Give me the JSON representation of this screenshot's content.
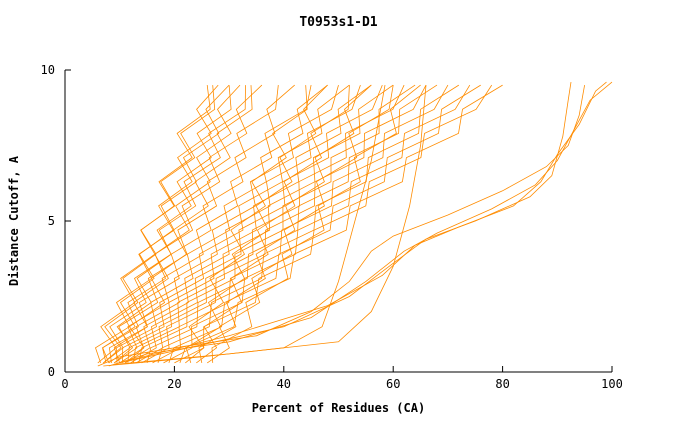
{
  "chart_data": {
    "type": "line",
    "title": "T0953s1-D1",
    "xlabel": "Percent of Residues (CA)",
    "ylabel": "Distance Cutoff, A",
    "xlim": [
      0,
      100
    ],
    "ylim": [
      0,
      10
    ],
    "x_ticks": [
      0,
      20,
      40,
      60,
      80,
      100
    ],
    "y_ticks": [
      0,
      5,
      10
    ],
    "grid": false,
    "legend": "none",
    "line_color": "#ff8c00",
    "y_levels": [
      0.3,
      0.8,
      1.5,
      2.3,
      3.1,
      3.9,
      4.7,
      5.5,
      6.3,
      7.1,
      7.9,
      8.7,
      9.5
    ],
    "zigzag_amplitude": 2.2,
    "bundle_series_format": [
      "x_at_y_min",
      "x_at_y_max"
    ],
    "bundle_series": [
      [
        6,
        27
      ],
      [
        6.5,
        30
      ],
      [
        7,
        33
      ],
      [
        7.5,
        36
      ],
      [
        8,
        39
      ],
      [
        8.5,
        42
      ],
      [
        9,
        45
      ],
      [
        9.5,
        48
      ],
      [
        10,
        50
      ],
      [
        10.5,
        52
      ],
      [
        11,
        54
      ],
      [
        11.5,
        56
      ],
      [
        12,
        58
      ],
      [
        12.5,
        60
      ],
      [
        13,
        62
      ],
      [
        13.5,
        64
      ],
      [
        14,
        66
      ],
      [
        15,
        68
      ],
      [
        16,
        70
      ],
      [
        17,
        72
      ],
      [
        18,
        74
      ],
      [
        19,
        76
      ],
      [
        20,
        78
      ],
      [
        21,
        80
      ],
      [
        22,
        44
      ],
      [
        23,
        48
      ],
      [
        24,
        52
      ],
      [
        25,
        56
      ],
      [
        26,
        60
      ],
      [
        27,
        65
      ],
      [
        7,
        26
      ],
      [
        8,
        28
      ],
      [
        9,
        30
      ],
      [
        10,
        32
      ],
      [
        11,
        34
      ]
    ],
    "outlier_series": [
      {
        "points": [
          [
            6,
            0.2
          ],
          [
            10,
            0.5
          ],
          [
            20,
            0.8
          ],
          [
            35,
            1.2
          ],
          [
            45,
            2
          ],
          [
            52,
            3
          ],
          [
            56,
            4
          ],
          [
            60,
            4.5
          ],
          [
            70,
            5.2
          ],
          [
            80,
            6
          ],
          [
            88,
            6.8
          ],
          [
            92,
            7.5
          ],
          [
            94,
            8.5
          ],
          [
            95,
            9.5
          ]
        ]
      },
      {
        "points": [
          [
            8,
            0.2
          ],
          [
            15,
            0.6
          ],
          [
            30,
            1
          ],
          [
            45,
            1.8
          ],
          [
            55,
            3
          ],
          [
            62,
            4
          ],
          [
            68,
            4.6
          ],
          [
            78,
            5.4
          ],
          [
            86,
            6.2
          ],
          [
            90,
            7
          ],
          [
            93,
            8
          ],
          [
            96,
            9
          ],
          [
            100,
            9.6
          ]
        ]
      },
      {
        "points": [
          [
            10,
            0.3
          ],
          [
            25,
            0.9
          ],
          [
            40,
            1.5
          ],
          [
            52,
            2.5
          ],
          [
            60,
            3.6
          ],
          [
            66,
            4.4
          ],
          [
            75,
            5
          ],
          [
            85,
            5.8
          ],
          [
            89,
            6.5
          ],
          [
            91,
            7.8
          ],
          [
            92,
            9
          ],
          [
            92.5,
            9.6
          ]
        ]
      },
      {
        "points": [
          [
            12,
            0.4
          ],
          [
            30,
            1.2
          ],
          [
            48,
            2.2
          ],
          [
            58,
            3.2
          ],
          [
            64,
            4.2
          ],
          [
            72,
            4.8
          ],
          [
            82,
            5.5
          ],
          [
            87,
            6.3
          ],
          [
            90,
            7.2
          ],
          [
            94,
            8.2
          ],
          [
            97,
            9.3
          ],
          [
            99,
            9.6
          ]
        ]
      },
      {
        "points": [
          [
            7,
            0.2
          ],
          [
            25,
            0.5
          ],
          [
            40,
            0.8
          ],
          [
            47,
            1.5
          ],
          [
            50,
            3
          ],
          [
            53,
            5
          ],
          [
            56,
            7
          ],
          [
            58,
            9
          ],
          [
            58.5,
            9.5
          ]
        ]
      },
      {
        "points": [
          [
            9,
            0.25
          ],
          [
            30,
            0.6
          ],
          [
            50,
            1
          ],
          [
            56,
            2
          ],
          [
            60,
            3.5
          ],
          [
            63,
            5.5
          ],
          [
            65,
            7.5
          ],
          [
            66,
            9.5
          ]
        ]
      }
    ]
  }
}
